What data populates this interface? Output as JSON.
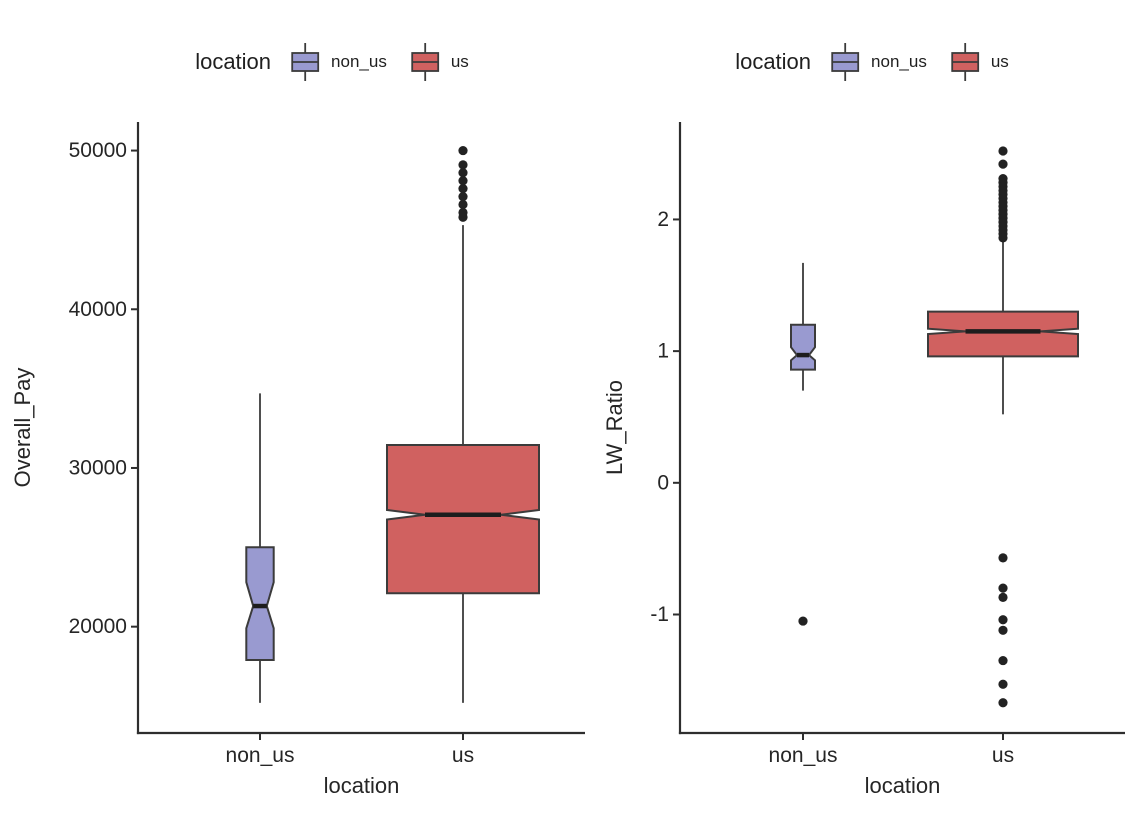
{
  "style": {
    "background": "#ffffff",
    "non_us_fill": "#999ad0",
    "us_fill": "#d06160",
    "box_stroke": "#3b3b3b",
    "axis_color": "#2e2e2e",
    "text_color": "#262626",
    "median_color": "#1d1d1d",
    "outlier_color": "#222222"
  },
  "legend": {
    "title": "location",
    "entries": [
      {
        "label": "non_us",
        "color": "#999ad0"
      },
      {
        "label": "us",
        "color": "#d06160"
      }
    ]
  },
  "chart_data": [
    {
      "type": "boxplot",
      "title": "",
      "xlabel": "location",
      "ylabel": "Overall_Pay",
      "categories": [
        "non_us",
        "us"
      ],
      "ylim": [
        13300,
        51800
      ],
      "yticks": [
        20000,
        30000,
        40000,
        50000
      ],
      "grid": false,
      "legend_position": "top",
      "notched": true,
      "series": [
        {
          "name": "non_us",
          "color": "#999ad0",
          "width_frac": 0.18,
          "whisker_low": 15200,
          "q1": 17900,
          "notch_low": 19900,
          "median": 21300,
          "notch_high": 22800,
          "q3": 25000,
          "whisker_high": 34700,
          "outliers": []
        },
        {
          "name": "us",
          "color": "#d06160",
          "width_frac": 1.0,
          "whisker_low": 15200,
          "q1": 22100,
          "notch_low": 26750,
          "median": 27050,
          "notch_high": 27350,
          "q3": 31450,
          "whisker_high": 45300,
          "outliers": [
            50000,
            49100,
            48600,
            48100,
            47600,
            47100,
            46600,
            46100,
            45800
          ]
        }
      ]
    },
    {
      "type": "boxplot",
      "title": "",
      "xlabel": "location",
      "ylabel": "LW_Ratio",
      "categories": [
        "non_us",
        "us"
      ],
      "ylim": [
        -1.9,
        2.74
      ],
      "yticks": [
        -1,
        0,
        1,
        2
      ],
      "grid": false,
      "legend_position": "top",
      "notched": true,
      "series": [
        {
          "name": "non_us",
          "color": "#999ad0",
          "width_frac": 0.16,
          "whisker_low": 0.7,
          "q1": 0.86,
          "notch_low": 0.93,
          "median": 0.97,
          "notch_high": 1.03,
          "q3": 1.2,
          "whisker_high": 1.67,
          "outliers": [
            -1.05
          ]
        },
        {
          "name": "us",
          "color": "#d06160",
          "width_frac": 1.0,
          "whisker_low": 0.52,
          "q1": 0.96,
          "notch_low": 1.13,
          "median": 1.15,
          "notch_high": 1.17,
          "q3": 1.3,
          "whisker_high": 1.85,
          "outliers": [
            2.52,
            2.42,
            2.31,
            2.28,
            2.25,
            2.22,
            2.19,
            2.16,
            2.13,
            2.1,
            2.07,
            2.04,
            2.01,
            1.98,
            1.95,
            1.92,
            1.89,
            1.86,
            -0.57,
            -0.8,
            -0.87,
            -1.04,
            -1.12,
            -1.35,
            -1.53,
            -1.67
          ]
        }
      ]
    }
  ]
}
